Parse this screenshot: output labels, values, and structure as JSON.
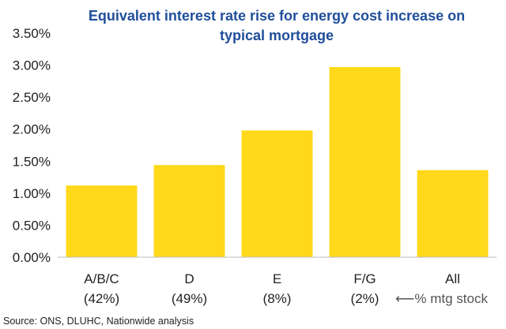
{
  "chart_data": {
    "type": "bar",
    "title_lines": [
      "Equivalent interest rate rise for energy cost increase on",
      "typical mortgage"
    ],
    "categories": [
      "A/B/C",
      "D",
      "E",
      "F/G",
      "All"
    ],
    "category_shares": [
      "(42%)",
      "(49%)",
      "(8%)",
      "(2%)",
      ""
    ],
    "values": [
      1.12,
      1.44,
      1.98,
      2.97,
      1.36
    ],
    "ylim": [
      0,
      3.5
    ],
    "y_ticks": [
      0,
      0.5,
      1.0,
      1.5,
      2.0,
      2.5,
      3.0,
      3.5
    ],
    "y_tick_labels": [
      "0.00%",
      "0.50%",
      "1.00%",
      "1.50%",
      "2.00%",
      "2.50%",
      "3.00%",
      "3.50%"
    ],
    "share_note": "⟵% mtg stock",
    "bar_color": "#ffd91a",
    "title_color": "#1f4e9b",
    "grid": false,
    "legend": "none"
  },
  "source": "Source: ONS, DLUHC, Nationwide analysis"
}
